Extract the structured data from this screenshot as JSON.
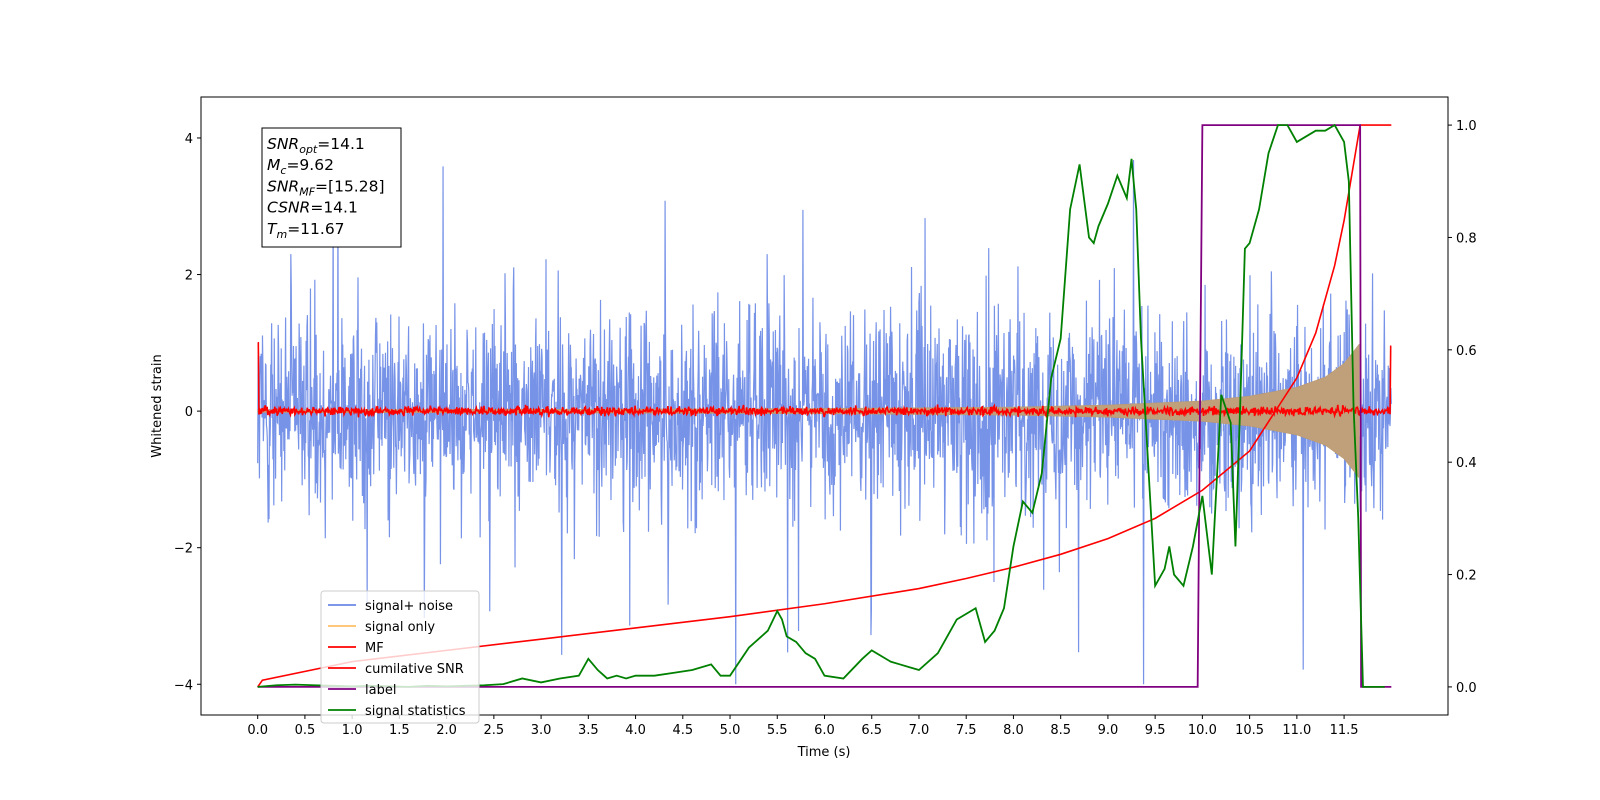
{
  "chart_data": {
    "type": "line",
    "title": "",
    "xlabel": "Time (s)",
    "ylabel": "Whitened strain",
    "xlim": [
      -0.6,
      12.6
    ],
    "ylim": [
      -4.45,
      4.6
    ],
    "y2lim": [
      -0.05,
      1.05
    ],
    "xticks": [
      "0.0",
      "0.5",
      "1.0",
      "1.5",
      "2.0",
      "2.5",
      "3.0",
      "3.5",
      "4.0",
      "4.5",
      "5.0",
      "5.5",
      "6.0",
      "6.5",
      "7.0",
      "7.5",
      "8.0",
      "8.5",
      "9.0",
      "9.5",
      "10.0",
      "10.5",
      "11.0",
      "11.5"
    ],
    "yticks": [
      "−4",
      "−2",
      "0",
      "2",
      "4"
    ],
    "y2ticks": [
      "0.0",
      "0.2",
      "0.4",
      "0.6",
      "0.8",
      "1.0"
    ],
    "legend_position": "lower-left",
    "series": [
      {
        "name": "signal+ noise",
        "color": "#6b8ae6",
        "axis": "left",
        "description": "noise band",
        "amplitude_range": [
          -4.0,
          4.2
        ]
      },
      {
        "name": "signal only",
        "color": "#ffbf66",
        "axis": "left",
        "envelope": {
          "x": [
            0,
            4,
            6,
            8,
            9,
            10,
            10.5,
            11,
            11.3,
            11.5,
            11.67
          ],
          "amp": [
            0.02,
            0.03,
            0.04,
            0.06,
            0.09,
            0.15,
            0.22,
            0.35,
            0.5,
            0.7,
            1.0
          ]
        }
      },
      {
        "name": "MF",
        "color": "#ff0000",
        "axis": "left",
        "base": 0.0,
        "edges": {
          "start": 1.0,
          "end": 0.95
        }
      },
      {
        "name": "cumilative SNR",
        "color": "#ff0000",
        "axis": "right",
        "x": [
          0.0,
          0.05,
          1,
          2,
          3,
          4,
          5,
          6,
          7,
          7.5,
          8,
          8.5,
          9,
          9.5,
          10,
          10.5,
          11,
          11.2,
          11.4,
          11.5,
          11.6,
          11.67,
          11.68,
          12.0
        ],
        "y": [
          0.0,
          0.012,
          0.045,
          0.065,
          0.085,
          0.105,
          0.125,
          0.148,
          0.175,
          0.193,
          0.213,
          0.236,
          0.264,
          0.3,
          0.35,
          0.42,
          0.55,
          0.63,
          0.75,
          0.83,
          0.93,
          1.0,
          1.0,
          1.0
        ]
      },
      {
        "name": "label",
        "color": "#800080",
        "axis": "right",
        "x": [
          0.0,
          9.95,
          10.0,
          11.63,
          11.67,
          11.68,
          12.0
        ],
        "y": [
          0.0,
          0.0,
          1.0,
          1.0,
          1.0,
          0.0,
          0.0
        ]
      },
      {
        "name": "signal statistics",
        "color": "#008000",
        "axis": "right",
        "x": [
          0,
          0.2,
          0.4,
          0.6,
          0.8,
          1.0,
          1.2,
          1.4,
          1.6,
          1.8,
          2.0,
          2.2,
          2.4,
          2.6,
          2.8,
          3.0,
          3.2,
          3.4,
          3.5,
          3.6,
          3.7,
          3.8,
          3.9,
          4.0,
          4.2,
          4.4,
          4.6,
          4.8,
          4.9,
          5.0,
          5.2,
          5.4,
          5.5,
          5.55,
          5.6,
          5.7,
          5.8,
          5.9,
          6.0,
          6.2,
          6.4,
          6.5,
          6.6,
          6.7,
          6.8,
          6.9,
          7.0,
          7.2,
          7.4,
          7.5,
          7.6,
          7.7,
          7.8,
          7.85,
          7.9,
          8.0,
          8.1,
          8.2,
          8.3,
          8.4,
          8.5,
          8.6,
          8.7,
          8.8,
          8.85,
          8.9,
          9.0,
          9.1,
          9.2,
          9.25,
          9.3,
          9.35,
          9.5,
          9.6,
          9.65,
          9.7,
          9.8,
          9.9,
          10.0,
          10.1,
          10.2,
          10.3,
          10.35,
          10.4,
          10.45,
          10.5,
          10.6,
          10.7,
          10.8,
          10.9,
          11.0,
          11.1,
          11.2,
          11.3,
          11.4,
          11.5,
          11.55,
          11.6,
          11.65,
          11.7,
          11.8,
          11.93
        ],
        "y": [
          0.0,
          0.003,
          0.004,
          0.003,
          0.002,
          0.001,
          0.002,
          0.001,
          0.0,
          0.002,
          0.001,
          0.002,
          0.003,
          0.005,
          0.015,
          0.008,
          0.015,
          0.02,
          0.05,
          0.03,
          0.015,
          0.02,
          0.015,
          0.02,
          0.02,
          0.025,
          0.03,
          0.04,
          0.02,
          0.02,
          0.07,
          0.1,
          0.135,
          0.12,
          0.09,
          0.08,
          0.06,
          0.05,
          0.02,
          0.015,
          0.05,
          0.065,
          0.055,
          0.045,
          0.04,
          0.035,
          0.03,
          0.06,
          0.12,
          0.13,
          0.14,
          0.08,
          0.1,
          0.12,
          0.14,
          0.25,
          0.33,
          0.31,
          0.38,
          0.55,
          0.62,
          0.85,
          0.93,
          0.8,
          0.79,
          0.82,
          0.86,
          0.91,
          0.87,
          0.94,
          0.85,
          0.62,
          0.18,
          0.21,
          0.25,
          0.2,
          0.18,
          0.25,
          0.34,
          0.2,
          0.52,
          0.47,
          0.25,
          0.5,
          0.78,
          0.79,
          0.85,
          0.95,
          1.0,
          1.0,
          0.97,
          0.98,
          0.99,
          0.99,
          1.0,
          0.97,
          0.9,
          0.5,
          0.3,
          0.0,
          0.0,
          0.0
        ]
      }
    ],
    "annotation": {
      "lines": [
        {
          "main": "SNR",
          "sub": "opt",
          "rest": "=14.1"
        },
        {
          "main": "M",
          "sub": "c",
          "rest": "=9.62"
        },
        {
          "main": "SNR",
          "sub": "MF",
          "rest": "=[15.28]"
        },
        {
          "main": "CSNR",
          "sub": "",
          "rest": "=14.1"
        },
        {
          "main": "T",
          "sub": "m",
          "rest": "=11.67"
        }
      ]
    }
  }
}
